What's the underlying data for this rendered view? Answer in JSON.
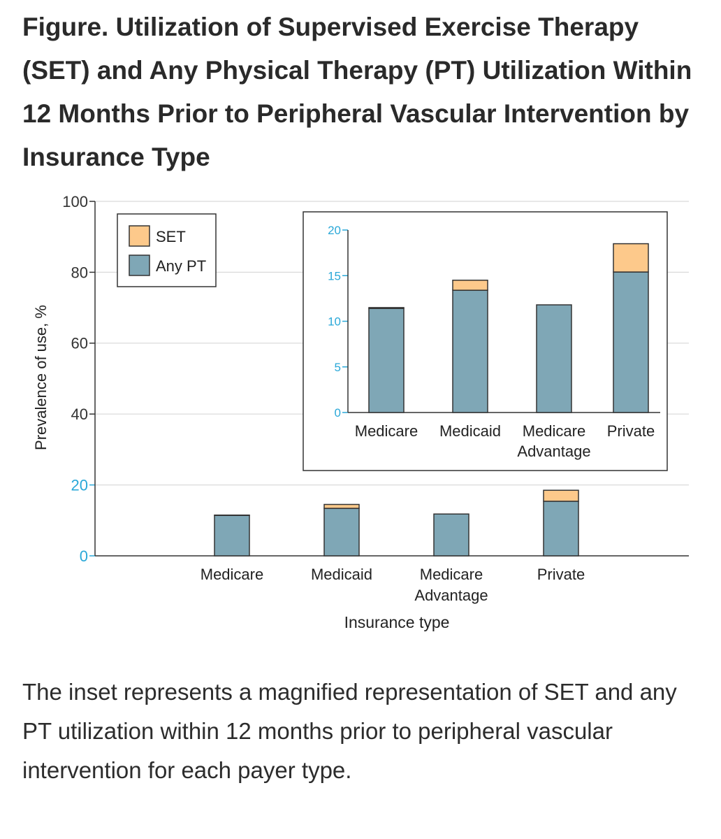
{
  "figure": {
    "title": "Figure.  Utilization of Supervised Exercise Therapy (SET) and Any Physical Therapy (PT) Utilization Within 12 Months Prior to Peripheral Vascular Intervention by Insurance Type",
    "caption": "The inset represents a magnified representation of SET and any PT utilization within 12 months prior to peripheral vascular intervention for each payer type."
  },
  "colors": {
    "pt": "#7fa7b6",
    "set": "#fdc98b",
    "outline": "#333333",
    "grid": "#d9d9d9",
    "axis": "#333333",
    "zoom_axis": "#2aa8d8"
  },
  "chart_data": [
    {
      "id": "main",
      "type": "bar",
      "stacked": true,
      "categories": [
        "Medicare",
        "Medicaid",
        "Medicare\nAdvantage",
        "Private"
      ],
      "series": [
        {
          "name": "Any PT",
          "key": "pt",
          "values": [
            11.4,
            13.4,
            11.8,
            15.4
          ]
        },
        {
          "name": "SET",
          "key": "set",
          "values": [
            0.1,
            1.1,
            0.0,
            3.1
          ]
        }
      ],
      "xlabel": "Insurance type",
      "ylabel": "Prevalence of use, %",
      "ylim": [
        0,
        100
      ],
      "yticks": [
        0,
        20,
        40,
        60,
        80,
        100
      ],
      "grid": true,
      "legend": {
        "position": "top-left",
        "entries": [
          "SET",
          "Any PT"
        ]
      }
    },
    {
      "id": "inset",
      "type": "bar",
      "stacked": true,
      "categories": [
        "Medicare",
        "Medicaid",
        "Medicare\nAdvantage",
        "Private"
      ],
      "series": [
        {
          "name": "Any PT",
          "key": "pt",
          "values": [
            11.4,
            13.4,
            11.8,
            15.4
          ]
        },
        {
          "name": "SET",
          "key": "set",
          "values": [
            0.1,
            1.1,
            0.0,
            3.1
          ]
        }
      ],
      "ylim": [
        0,
        20
      ],
      "yticks": [
        0,
        5,
        10,
        15,
        20
      ],
      "legend": {
        "position": "none"
      }
    }
  ]
}
